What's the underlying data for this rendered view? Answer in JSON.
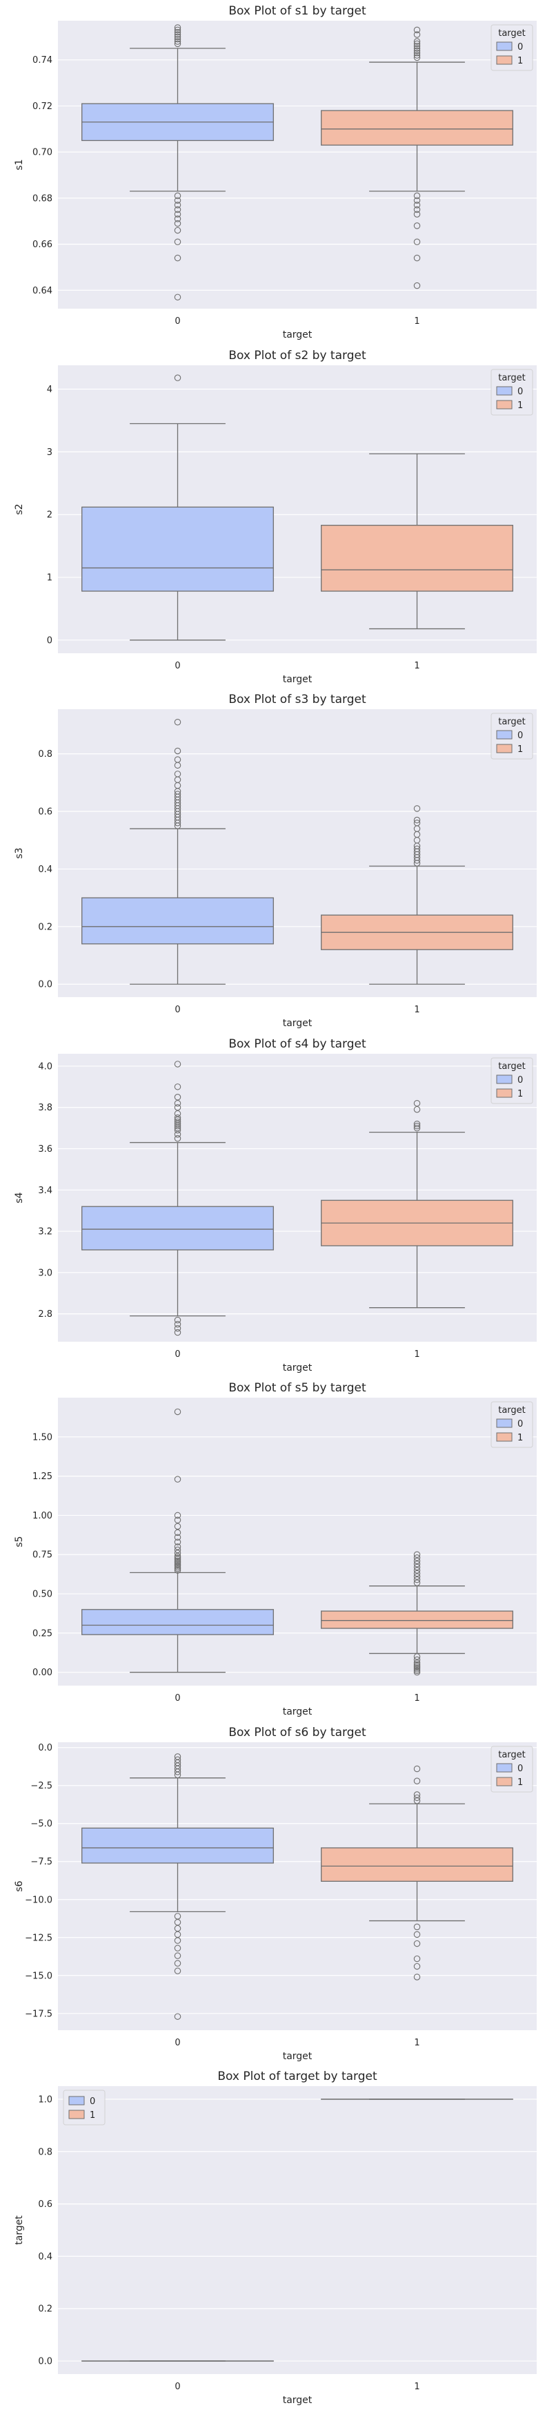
{
  "colors": {
    "0": "#b4c7f8",
    "1": "#f3bca6",
    "edge": "#6f6f6f",
    "background": "#eaeaf2"
  },
  "chart_data": [
    {
      "type": "box",
      "title": "Box Plot of s1 by target",
      "xlabel": "target",
      "ylabel": "s1",
      "categories": [
        "0",
        "1"
      ],
      "legend": {
        "title": "target",
        "entries": [
          "0",
          "1"
        ],
        "position": "top-right"
      },
      "yticks": [
        0.64,
        0.66,
        0.68,
        0.7,
        0.72,
        0.74
      ],
      "yticklabels": [
        "0.64",
        "0.66",
        "0.68",
        "0.70",
        "0.72",
        "0.74"
      ],
      "ylim": [
        0.632,
        0.757
      ],
      "grid": true,
      "boxes": [
        {
          "category": "0",
          "whislo": 0.683,
          "q1": 0.705,
          "median": 0.713,
          "q3": 0.721,
          "whishi": 0.745,
          "fliers": [
            0.747,
            0.748,
            0.749,
            0.75,
            0.751,
            0.752,
            0.753,
            0.754,
            0.681,
            0.679,
            0.677,
            0.675,
            0.673,
            0.671,
            0.669,
            0.666,
            0.661,
            0.654,
            0.637
          ]
        },
        {
          "category": "1",
          "whislo": 0.683,
          "q1": 0.703,
          "median": 0.71,
          "q3": 0.718,
          "whishi": 0.739,
          "fliers": [
            0.741,
            0.742,
            0.743,
            0.744,
            0.745,
            0.746,
            0.747,
            0.748,
            0.751,
            0.753,
            0.681,
            0.679,
            0.677,
            0.675,
            0.673,
            0.668,
            0.661,
            0.654,
            0.642
          ]
        }
      ]
    },
    {
      "type": "box",
      "title": "Box Plot of s2 by target",
      "xlabel": "target",
      "ylabel": "s2",
      "categories": [
        "0",
        "1"
      ],
      "legend": {
        "title": "target",
        "entries": [
          "0",
          "1"
        ],
        "position": "top-right"
      },
      "yticks": [
        0,
        1,
        2,
        3,
        4
      ],
      "yticklabels": [
        "0",
        "1",
        "2",
        "3",
        "4"
      ],
      "ylim": [
        -0.21,
        4.38
      ],
      "grid": true,
      "boxes": [
        {
          "category": "0",
          "whislo": 0.0,
          "q1": 0.78,
          "median": 1.15,
          "q3": 2.12,
          "whishi": 3.45,
          "fliers": [
            4.18
          ]
        },
        {
          "category": "1",
          "whislo": 0.18,
          "q1": 0.78,
          "median": 1.12,
          "q3": 1.83,
          "whishi": 2.97,
          "fliers": []
        }
      ]
    },
    {
      "type": "box",
      "title": "Box Plot of s3 by target",
      "xlabel": "target",
      "ylabel": "s3",
      "categories": [
        "0",
        "1"
      ],
      "legend": {
        "title": "target",
        "entries": [
          "0",
          "1"
        ],
        "position": "top-right"
      },
      "yticks": [
        0.0,
        0.2,
        0.4,
        0.6,
        0.8
      ],
      "yticklabels": [
        "0.0",
        "0.2",
        "0.4",
        "0.6",
        "0.8"
      ],
      "ylim": [
        -0.045,
        0.955
      ],
      "grid": true,
      "boxes": [
        {
          "category": "0",
          "whislo": 0.0,
          "q1": 0.14,
          "median": 0.2,
          "q3": 0.3,
          "whishi": 0.54,
          "fliers": [
            0.55,
            0.56,
            0.57,
            0.58,
            0.59,
            0.6,
            0.61,
            0.62,
            0.63,
            0.64,
            0.65,
            0.66,
            0.67,
            0.69,
            0.71,
            0.73,
            0.76,
            0.78,
            0.81,
            0.91
          ]
        },
        {
          "category": "1",
          "whislo": 0.0,
          "q1": 0.12,
          "median": 0.18,
          "q3": 0.24,
          "whishi": 0.41,
          "fliers": [
            0.42,
            0.43,
            0.44,
            0.45,
            0.46,
            0.47,
            0.48,
            0.5,
            0.52,
            0.54,
            0.56,
            0.57,
            0.61
          ]
        }
      ]
    },
    {
      "type": "box",
      "title": "Box Plot of s4 by target",
      "xlabel": "target",
      "ylabel": "s4",
      "categories": [
        "0",
        "1"
      ],
      "legend": {
        "title": "target",
        "entries": [
          "0",
          "1"
        ],
        "position": "top-right"
      },
      "yticks": [
        2.8,
        3.0,
        3.2,
        3.4,
        3.6,
        3.8,
        4.0
      ],
      "yticklabels": [
        "2.8",
        "3.0",
        "3.2",
        "3.4",
        "3.6",
        "3.8",
        "4.0"
      ],
      "ylim": [
        2.665,
        4.06
      ],
      "grid": true,
      "boxes": [
        {
          "category": "0",
          "whislo": 2.79,
          "q1": 3.11,
          "median": 3.21,
          "q3": 3.32,
          "whishi": 3.63,
          "fliers": [
            3.65,
            3.67,
            3.69,
            3.7,
            3.71,
            3.72,
            3.73,
            3.74,
            3.75,
            3.77,
            3.8,
            3.82,
            3.85,
            3.9,
            4.01,
            2.77,
            2.75,
            2.73,
            2.71
          ]
        },
        {
          "category": "1",
          "whislo": 2.83,
          "q1": 3.13,
          "median": 3.24,
          "q3": 3.35,
          "whishi": 3.68,
          "fliers": [
            3.7,
            3.71,
            3.72,
            3.79,
            3.82
          ]
        }
      ]
    },
    {
      "type": "box",
      "title": "Box Plot of s5 by target",
      "xlabel": "target",
      "ylabel": "s5",
      "categories": [
        "0",
        "1"
      ],
      "legend": {
        "title": "target",
        "entries": [
          "0",
          "1"
        ],
        "position": "top-right"
      },
      "yticks": [
        0.0,
        0.25,
        0.5,
        0.75,
        1.0,
        1.25,
        1.5
      ],
      "yticklabels": [
        "0.00",
        "0.25",
        "0.50",
        "0.75",
        "1.00",
        "1.25",
        "1.50"
      ],
      "ylim": [
        -0.085,
        1.75
      ],
      "grid": true,
      "boxes": [
        {
          "category": "0",
          "whislo": 0.0,
          "q1": 0.24,
          "median": 0.3,
          "q3": 0.4,
          "whishi": 0.635,
          "fliers": [
            0.65,
            0.66,
            0.67,
            0.68,
            0.69,
            0.7,
            0.71,
            0.72,
            0.73,
            0.74,
            0.76,
            0.78,
            0.8,
            0.83,
            0.86,
            0.89,
            0.93,
            0.97,
            1.0,
            1.23,
            1.66
          ]
        },
        {
          "category": "1",
          "whislo": 0.12,
          "q1": 0.28,
          "median": 0.33,
          "q3": 0.39,
          "whishi": 0.55,
          "fliers": [
            0.57,
            0.59,
            0.61,
            0.63,
            0.65,
            0.67,
            0.69,
            0.71,
            0.73,
            0.75,
            0.1,
            0.08,
            0.06,
            0.05,
            0.04,
            0.03,
            0.02,
            0.01,
            0.0
          ]
        }
      ]
    },
    {
      "type": "box",
      "title": "Box Plot of s6 by target",
      "xlabel": "target",
      "ylabel": "s6",
      "categories": [
        "0",
        "1"
      ],
      "legend": {
        "title": "target",
        "entries": [
          "0",
          "1"
        ],
        "position": "top-right"
      },
      "yticks": [
        0.0,
        -2.5,
        -5.0,
        -7.5,
        -10.0,
        -12.5,
        -15.0,
        -17.5
      ],
      "yticklabels": [
        "0.0",
        "−2.5",
        "−5.0",
        "−7.5",
        "−10.0",
        "−12.5",
        "−15.0",
        "−17.5"
      ],
      "ylim": [
        -18.6,
        0.35
      ],
      "grid": true,
      "boxes": [
        {
          "category": "0",
          "whislo": -10.8,
          "q1": -7.6,
          "median": -6.6,
          "q3": -5.3,
          "whishi": -2.0,
          "fliers": [
            -1.8,
            -1.6,
            -1.4,
            -1.2,
            -1.0,
            -0.8,
            -0.6,
            -11.1,
            -11.5,
            -11.9,
            -12.3,
            -12.7,
            -13.2,
            -13.7,
            -14.2,
            -14.7,
            -17.7
          ]
        },
        {
          "category": "1",
          "whislo": -11.4,
          "q1": -8.8,
          "median": -7.8,
          "q3": -6.6,
          "whishi": -3.7,
          "fliers": [
            -3.5,
            -3.3,
            -3.1,
            -2.2,
            -1.4,
            -11.8,
            -12.3,
            -12.9,
            -13.9,
            -14.4,
            -15.1
          ]
        }
      ]
    },
    {
      "type": "box",
      "title": "Box Plot of target by target",
      "xlabel": "target",
      "ylabel": "target",
      "categories": [
        "0",
        "1"
      ],
      "legend": {
        "title": "",
        "entries": [
          "0",
          "1"
        ],
        "position": "top-left"
      },
      "yticks": [
        0.0,
        0.2,
        0.4,
        0.6,
        0.8,
        1.0
      ],
      "yticklabels": [
        "0.0",
        "0.2",
        "0.4",
        "0.6",
        "0.8",
        "1.0"
      ],
      "ylim": [
        -0.05,
        1.05
      ],
      "grid": true,
      "boxes": [
        {
          "category": "0",
          "whislo": 0.0,
          "q1": 0.0,
          "median": 0.0,
          "q3": 0.0,
          "whishi": 0.0,
          "fliers": []
        },
        {
          "category": "1",
          "whislo": 1.0,
          "q1": 1.0,
          "median": 1.0,
          "q3": 1.0,
          "whishi": 1.0,
          "fliers": []
        }
      ]
    }
  ]
}
